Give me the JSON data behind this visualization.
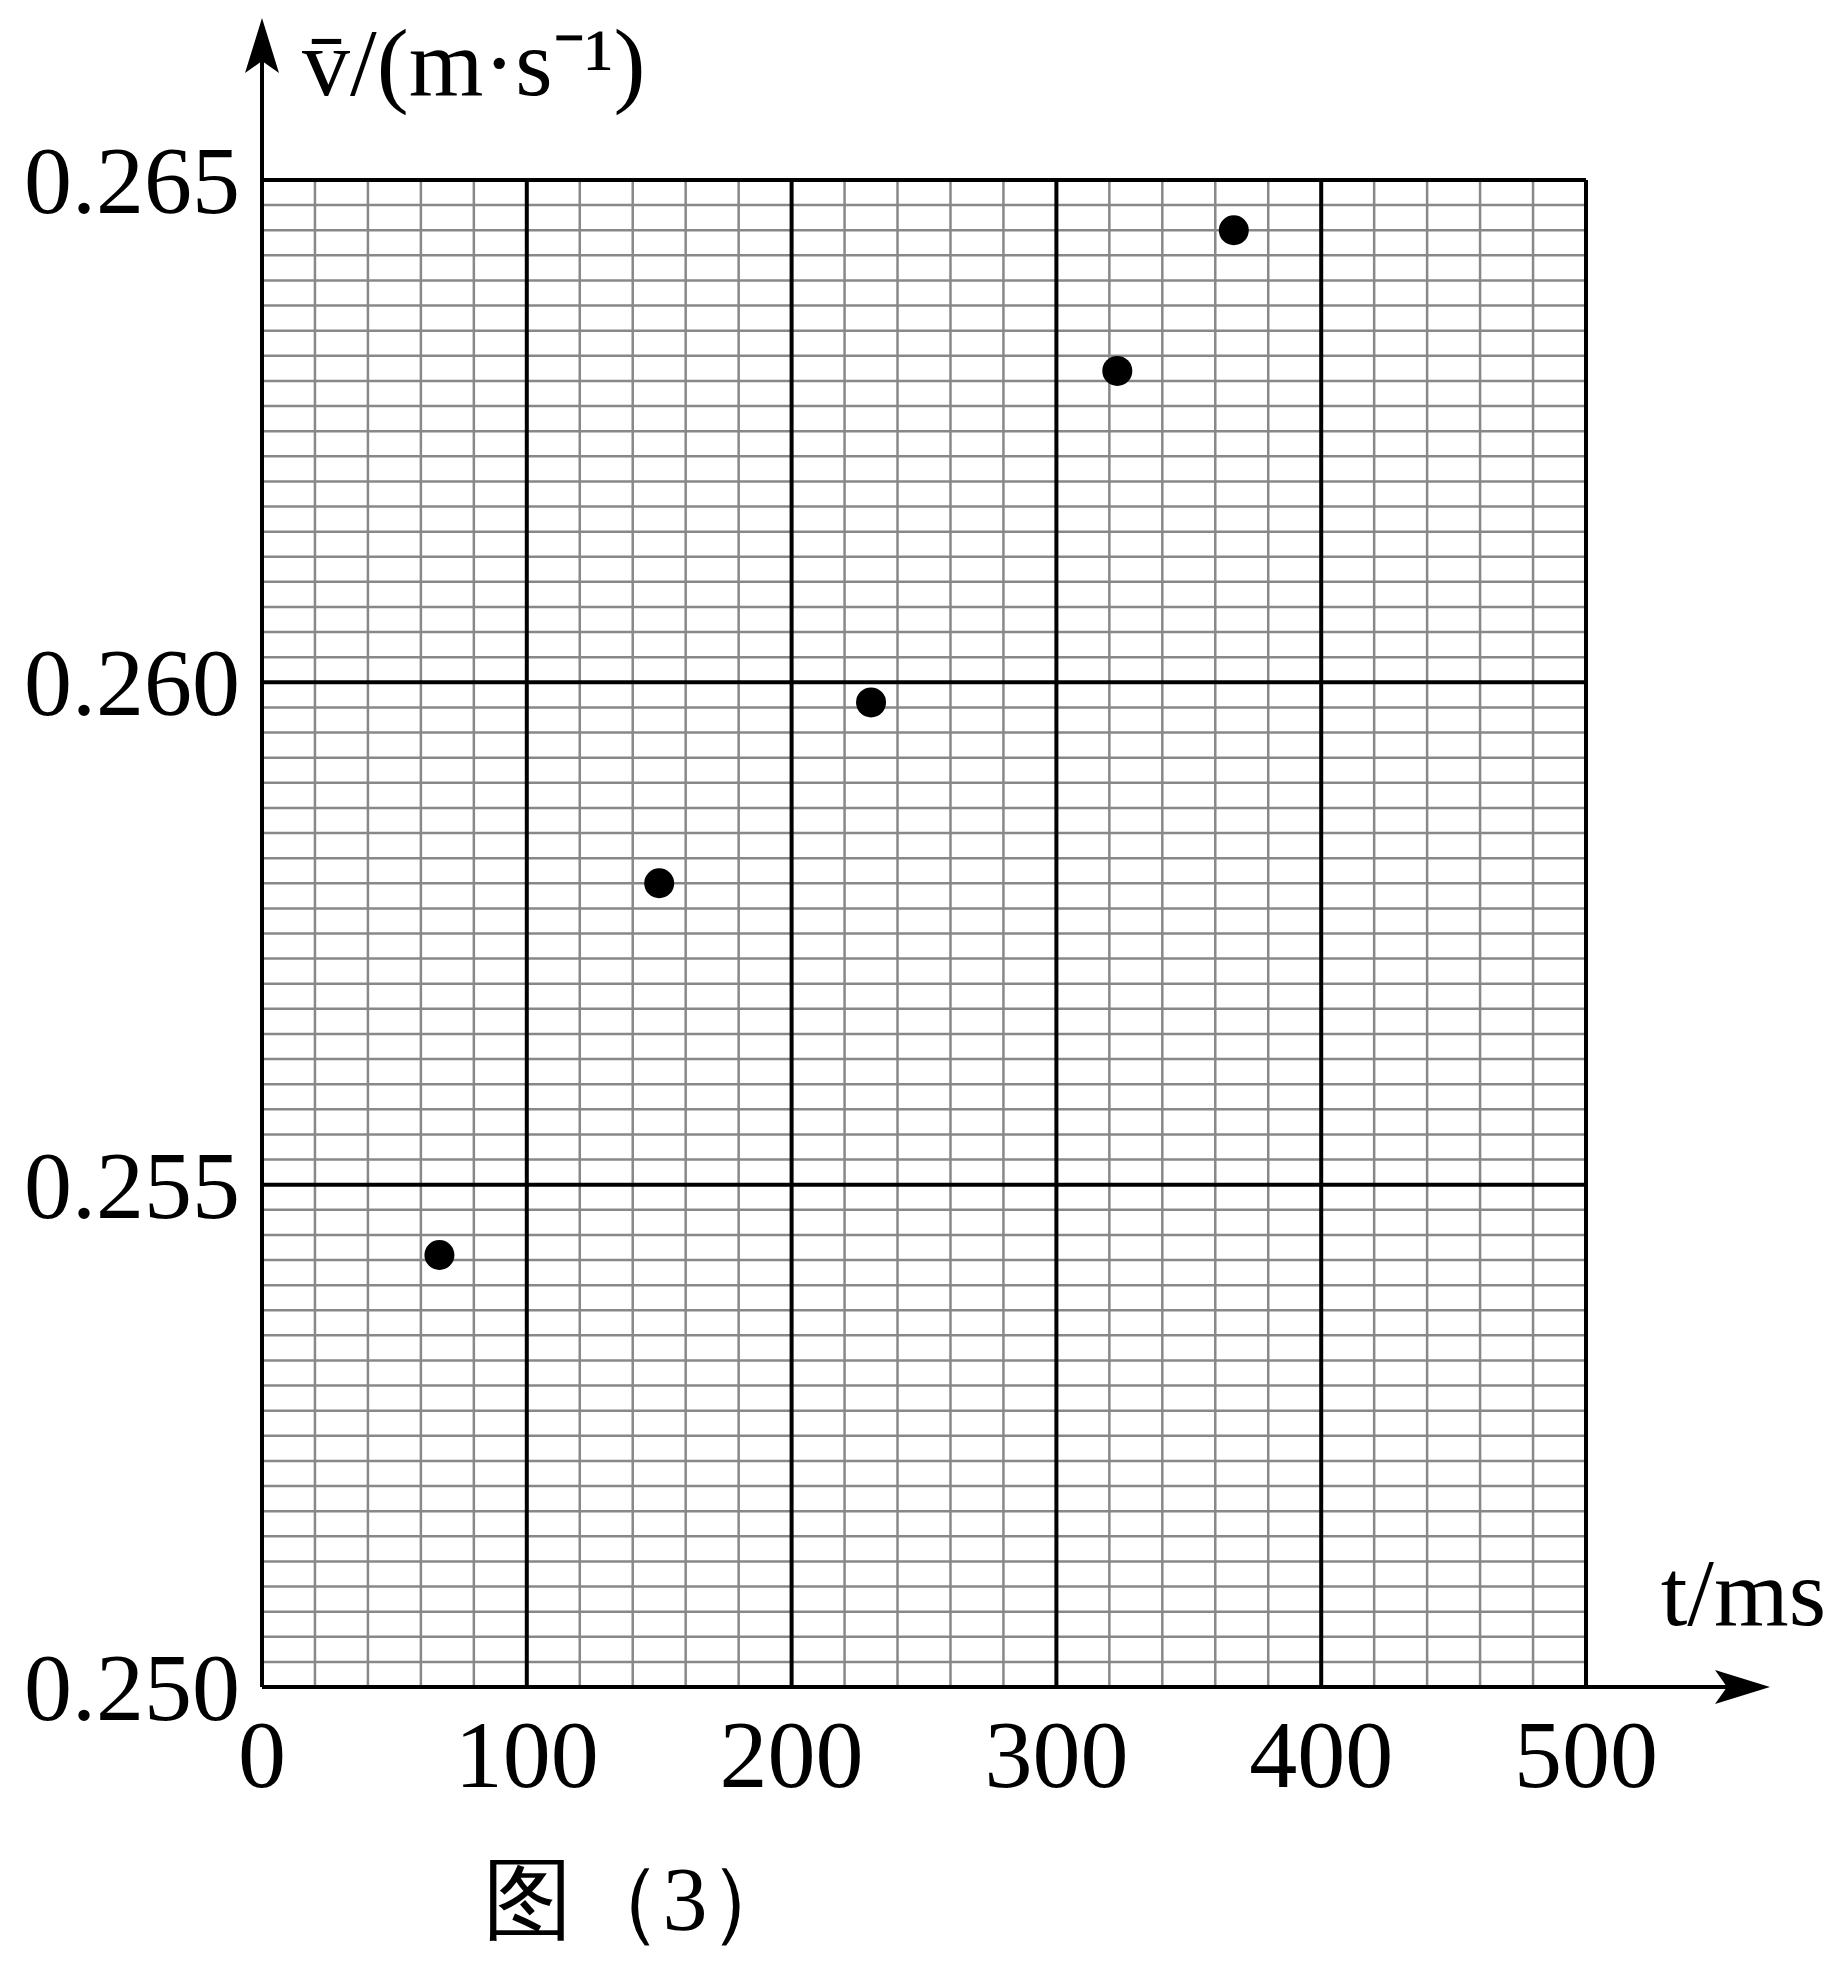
{
  "chart_data": {
    "type": "scatter",
    "xlabel": "t/ms",
    "ylabel": "v̄/(m·s⁻¹)",
    "x": [
      67,
      150,
      230,
      323,
      367
    ],
    "series": [
      {
        "color": "#000000",
        "values": [
          0.2543,
          0.258,
          0.2598,
          0.2631,
          0.2645
        ]
      }
    ],
    "xlim": [
      0,
      500
    ],
    "xticks": [
      0,
      100,
      200,
      300,
      400,
      500
    ],
    "ylim": [
      0.25,
      0.265
    ],
    "yticks": [
      {
        "value": 0.25,
        "label": "0.250"
      },
      {
        "value": 0.255,
        "label": "0.255"
      },
      {
        "value": 0.26,
        "label": "0.260"
      },
      {
        "value": 0.265,
        "label": "0.265"
      }
    ],
    "grid": true,
    "marker": "circle",
    "annotations": [
      "图（3）"
    ]
  }
}
